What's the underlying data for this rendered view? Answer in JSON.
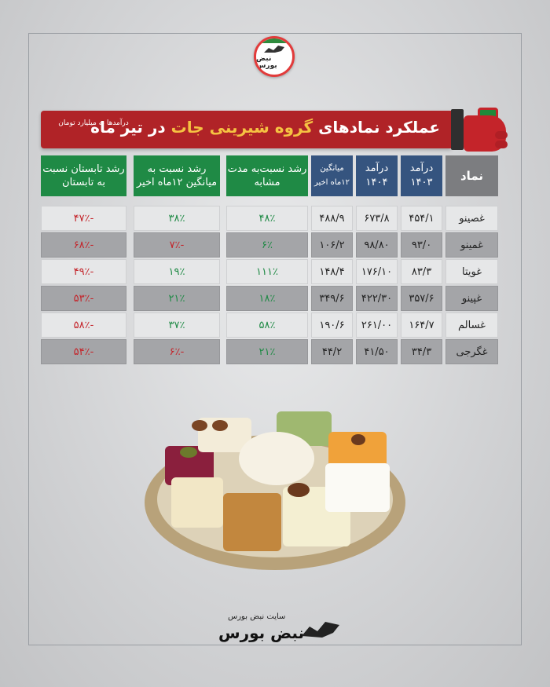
{
  "logo": {
    "text": "نبض بورس"
  },
  "banner": {
    "title_start": "عملکرد نمادهای",
    "title_highlight": "گروه شیرینی جات",
    "title_end": "در تیر ماه",
    "note": "درآمدها به میلیارد تومان"
  },
  "table": {
    "headers": [
      "نماد",
      "درآمد ۱۴۰۳",
      "درآمد ۱۴۰۴",
      "میانگین ۱۲ماه اخیر",
      "رشد نسبت‌به مدت مشابه",
      "رشد نسبت به میانگین ۱۲ماه اخیر",
      "رشد تابستان نسبت به تابستان"
    ],
    "rows": [
      [
        "غصینو",
        "۴۵۴/۱",
        "۶۷۳/۸",
        "۴۸۸/۹",
        "۴۸٪",
        "۳۸٪",
        "-۴۷٪"
      ],
      [
        "غمینو",
        "۹۳/۰",
        "۹۸/۸۰",
        "۱۰۶/۲",
        "۶٪",
        "-۷٪",
        "-۶۸٪"
      ],
      [
        "غویتا",
        "۸۳/۳",
        "۱۷۶/۱۰",
        "۱۴۸/۴",
        "۱۱۱٪",
        "۱۹٪",
        "-۴۹٪"
      ],
      [
        "غپینو",
        "۳۵۷/۶",
        "۴۲۲/۳۰",
        "۳۴۹/۶",
        "۱۸٪",
        "۲۱٪",
        "-۵۳٪"
      ],
      [
        "غسالم",
        "۱۶۴/۷",
        "۲۶۱/۰۰",
        "۱۹۰/۶",
        "۵۸٪",
        "۳۷٪",
        "-۵۸٪"
      ],
      [
        "غگرجی",
        "۳۴/۳",
        "۴۱/۵۰",
        "۴۴/۲",
        "۲۱٪",
        "-۶٪",
        "-۵۴٪"
      ]
    ],
    "signs": [
      [
        "",
        "",
        "",
        "",
        "pos",
        "pos",
        "neg"
      ],
      [
        "",
        "",
        "",
        "",
        "pos",
        "neg",
        "neg"
      ],
      [
        "",
        "",
        "",
        "",
        "pos",
        "pos",
        "neg"
      ],
      [
        "",
        "",
        "",
        "",
        "pos",
        "pos",
        "neg"
      ],
      [
        "",
        "",
        "",
        "",
        "pos",
        "pos",
        "neg"
      ],
      [
        "",
        "",
        "",
        "",
        "pos",
        "neg",
        "neg"
      ]
    ]
  },
  "footer": {
    "caption": "سایت نبض بورس",
    "brand": "نبض بورس"
  },
  "colors": {
    "red": "#b02327",
    "green": "#1f8a45",
    "blue": "#35547f",
    "grey": "#7c7d80"
  },
  "icons": [
    "bull-logo-icon",
    "fist-icon",
    "sweets-plate-image",
    "bull-brand-icon"
  ]
}
